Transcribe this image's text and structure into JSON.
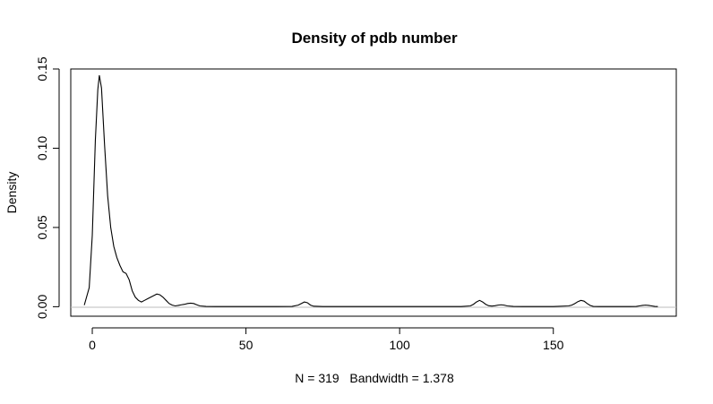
{
  "chart_data": {
    "type": "line",
    "title": "Density of pdb number",
    "xlabel": "N = 319   Bandwidth = 1.378",
    "ylabel": "Density",
    "xlim": [
      -7,
      190
    ],
    "ylim": [
      -0.006,
      0.15
    ],
    "x_ticks": [
      0,
      50,
      100,
      150
    ],
    "x_tick_labels": [
      "0",
      "50",
      "100",
      "150"
    ],
    "y_ticks": [
      0,
      0.05,
      0.1,
      0.15
    ],
    "y_tick_labels": [
      "0.00",
      "0.05",
      "0.10",
      "0.15"
    ],
    "grid": false,
    "zero_line": true,
    "series": [
      {
        "x": [
          -2.6,
          -1.0,
          0.0,
          1.0,
          1.8,
          2.3,
          3.0,
          4.0,
          5.0,
          6.0,
          7.0,
          8.0,
          9.0,
          10.0,
          11.0,
          12.0,
          13.0,
          14.0,
          15.0,
          16.0,
          17.0,
          18.0,
          19.0,
          20.0,
          21.0,
          22.0,
          23.0,
          24.0,
          25.0,
          26.0,
          27.0,
          28.0,
          29.0,
          30.0,
          31.0,
          32.0,
          33.0,
          34.0,
          35.0,
          37.0,
          40.0,
          45.0,
          50.0,
          55.0,
          60.0,
          65.0,
          67.0,
          68.0,
          69.0,
          70.0,
          71.0,
          72.0,
          75.0,
          80.0,
          90.0,
          100.0,
          110.0,
          120.0,
          123.0,
          124.0,
          125.0,
          126.0,
          127.0,
          128.0,
          129.0,
          130.0,
          131.0,
          132.0,
          133.0,
          134.0,
          135.0,
          137.0,
          140.0,
          145.0,
          150.0,
          155.0,
          156.0,
          157.0,
          158.0,
          159.0,
          160.0,
          161.0,
          162.0,
          163.0,
          165.0,
          170.0,
          175.0,
          177.0,
          178.0,
          179.0,
          180.0,
          181.0,
          182.0,
          183.0,
          184.0
        ],
        "y": [
          0.001,
          0.012,
          0.045,
          0.105,
          0.137,
          0.146,
          0.138,
          0.102,
          0.07,
          0.05,
          0.038,
          0.031,
          0.026,
          0.022,
          0.021,
          0.017,
          0.01,
          0.006,
          0.004,
          0.003,
          0.004,
          0.005,
          0.006,
          0.007,
          0.008,
          0.0075,
          0.006,
          0.004,
          0.002,
          0.001,
          0.0005,
          0.0008,
          0.0012,
          0.0015,
          0.002,
          0.0022,
          0.002,
          0.0012,
          0.0005,
          0.0002,
          0.0001,
          0.0001,
          0.0001,
          0.0001,
          0.0001,
          0.0002,
          0.001,
          0.002,
          0.003,
          0.0025,
          0.001,
          0.0003,
          0.0001,
          0.0001,
          0.0001,
          0.0001,
          0.0001,
          0.0001,
          0.0005,
          0.0015,
          0.003,
          0.004,
          0.003,
          0.0015,
          0.0006,
          0.0004,
          0.0006,
          0.001,
          0.0012,
          0.001,
          0.0005,
          0.0002,
          0.0001,
          0.0001,
          0.0001,
          0.0005,
          0.001,
          0.002,
          0.0032,
          0.004,
          0.0035,
          0.002,
          0.0008,
          0.0002,
          0.0001,
          0.0001,
          0.0001,
          0.0002,
          0.0005,
          0.0008,
          0.001,
          0.0008,
          0.0005,
          0.0002,
          0.0001
        ]
      }
    ]
  }
}
